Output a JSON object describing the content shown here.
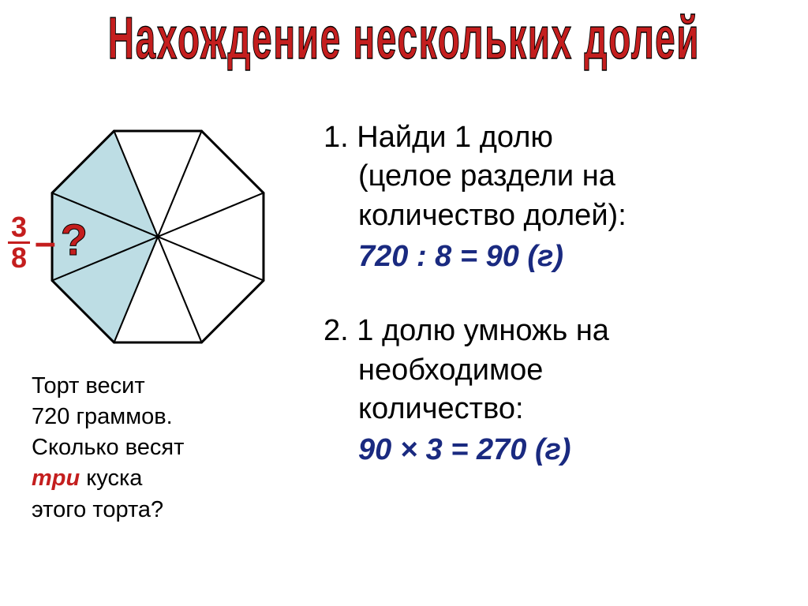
{
  "title": "Нахождение  нескольких  долей",
  "octagon": {
    "total_slices": 8,
    "shaded_slices": 3,
    "shaded_indices": [
      0,
      1,
      2
    ],
    "fill_color": "#bddde4",
    "stroke_color": "#000000",
    "stroke_width": 2,
    "background": "#ffffff"
  },
  "fraction": {
    "numerator": "3",
    "denominator": "8",
    "question_mark": "?",
    "color": "#c41e1e"
  },
  "problem": {
    "line1": "Торт  весит",
    "line2": "720  граммов.",
    "line3": "Сколько  весят",
    "emphasis": "три",
    "line4_rest": "  куска",
    "line5": "этого  торта?",
    "emphasis_color": "#c41e1e"
  },
  "steps": [
    {
      "number": "1.",
      "text_line1": "Найди  1  долю",
      "text_line2": "(целое  раздели на",
      "text_line3": "количество  долей):",
      "calc": "720 : 8 = 90 (г)"
    },
    {
      "number": "2.",
      "text_line1": "1  долю  умножь на",
      "text_line2": "необходимое",
      "text_line3": "количество:",
      "calc": "90 × 3 = 270 (г)"
    }
  ],
  "colors": {
    "title": "#c41e1e",
    "text": "#000000",
    "calc": "#1a2a80",
    "background": "#ffffff"
  }
}
